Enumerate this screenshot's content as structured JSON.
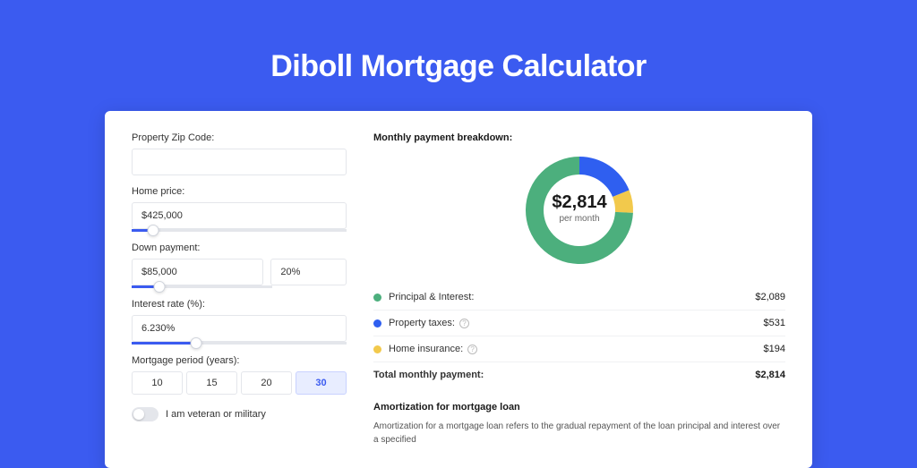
{
  "page": {
    "title": "Diboll Mortgage Calculator",
    "background_color": "#3b5bf0",
    "card_background": "#ffffff"
  },
  "form": {
    "zip": {
      "label": "Property Zip Code:",
      "value": ""
    },
    "home_price": {
      "label": "Home price:",
      "value": "$425,000",
      "slider_pct": 10
    },
    "down_payment": {
      "label": "Down payment:",
      "value": "$85,000",
      "pct_value": "20%",
      "slider_pct": 20
    },
    "interest_rate": {
      "label": "Interest rate (%):",
      "value": "6.230%",
      "slider_pct": 30
    },
    "period": {
      "label": "Mortgage period (years):",
      "options": [
        "10",
        "15",
        "20",
        "30"
      ],
      "selected": "30"
    },
    "veteran": {
      "label": "I am veteran or military",
      "checked": false
    }
  },
  "breakdown": {
    "title": "Monthly payment breakdown:",
    "center_amount": "$2,814",
    "center_sub": "per month",
    "items": [
      {
        "label": "Principal & Interest:",
        "value": "$2,089",
        "color": "#4caf7d",
        "has_info": false
      },
      {
        "label": "Property taxes:",
        "value": "$531",
        "color": "#2f5ff0",
        "has_info": true
      },
      {
        "label": "Home insurance:",
        "value": "$194",
        "color": "#f2c94c",
        "has_info": true
      }
    ],
    "total_label": "Total monthly payment:",
    "total_value": "$2,814",
    "donut": {
      "type": "donut",
      "r_outer": 60,
      "r_inner": 40,
      "background": "#ffffff",
      "slices": [
        {
          "color": "#4caf7d",
          "value": 2089
        },
        {
          "color": "#2f5ff0",
          "value": 531
        },
        {
          "color": "#f2c94c",
          "value": 194
        }
      ]
    }
  },
  "amortization": {
    "title": "Amortization for mortgage loan",
    "text": "Amortization for a mortgage loan refers to the gradual repayment of the loan principal and interest over a specified"
  }
}
